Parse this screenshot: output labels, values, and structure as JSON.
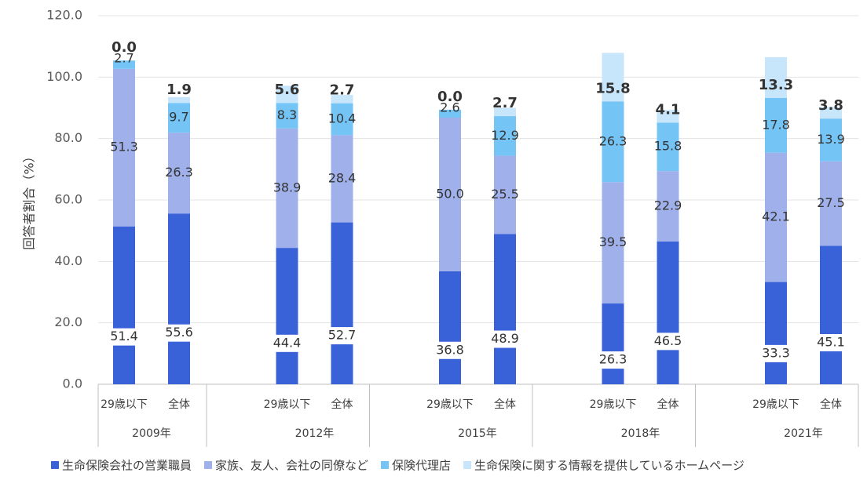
{
  "chart_data": {
    "type": "stacked-bar",
    "y_label": "回答者割合（%）",
    "categories": [
      "29歳以下",
      "全体",
      "29歳以下",
      "全体",
      "29歳以下",
      "全体",
      "29歳以下",
      "全体",
      "29歳以下",
      "全体"
    ],
    "group_labels": [
      "2009年",
      "2012年",
      "2015年",
      "2018年",
      "2021年"
    ],
    "series": [
      {
        "name": "生命保険会社の営業職員",
        "color": "#3a62d8",
        "values": [
          51.4,
          55.6,
          44.4,
          52.7,
          36.8,
          48.9,
          26.3,
          46.5,
          33.3,
          45.1
        ],
        "value_labels": [
          "51.4",
          "55.6",
          "44.4",
          "52.7",
          "36.8",
          "48.9",
          "26.3",
          "46.5",
          "33.3",
          "45.1"
        ]
      },
      {
        "name": "家族、友人、会社の同僚など",
        "color": "#9fb0ea",
        "values": [
          51.3,
          26.3,
          38.9,
          28.4,
          50.0,
          25.5,
          39.5,
          22.9,
          42.1,
          27.5
        ],
        "value_labels": [
          "51.3",
          "26.3",
          "38.9",
          "28.4",
          "50.0",
          "25.5",
          "39.5",
          "22.9",
          "42.1",
          "27.5"
        ]
      },
      {
        "name": "保険代理店",
        "color": "#74c4f5",
        "values": [
          2.7,
          9.7,
          8.3,
          10.4,
          2.6,
          12.9,
          26.3,
          15.8,
          17.8,
          13.9
        ],
        "value_labels": [
          "2.7",
          "9.7",
          "8.3",
          "10.4",
          "2.6",
          "12.9",
          "26.3",
          "15.8",
          "17.8",
          "13.9"
        ]
      },
      {
        "name": "生命保険に関する情報を提供しているホームページ",
        "color": "#c7e6fb",
        "values": [
          0.0,
          1.9,
          5.6,
          2.7,
          0.0,
          2.7,
          15.8,
          4.1,
          13.3,
          3.8
        ],
        "value_labels": [
          "0.0",
          "1.9",
          "5.6",
          "2.7",
          "0.0",
          "2.7",
          "15.8",
          "4.1",
          "13.3",
          "3.8"
        ]
      }
    ],
    "ylim": [
      0,
      120
    ],
    "yticks": [
      {
        "value": 0,
        "label": "0.0"
      },
      {
        "value": 20,
        "label": "20.0"
      },
      {
        "value": 40,
        "label": "40.0"
      },
      {
        "value": 60,
        "label": "60.0"
      },
      {
        "value": 80,
        "label": "80.0"
      },
      {
        "value": 100,
        "label": "100.0"
      },
      {
        "value": 120,
        "label": "120.0"
      }
    ],
    "grid": true,
    "legend": "bottom"
  }
}
